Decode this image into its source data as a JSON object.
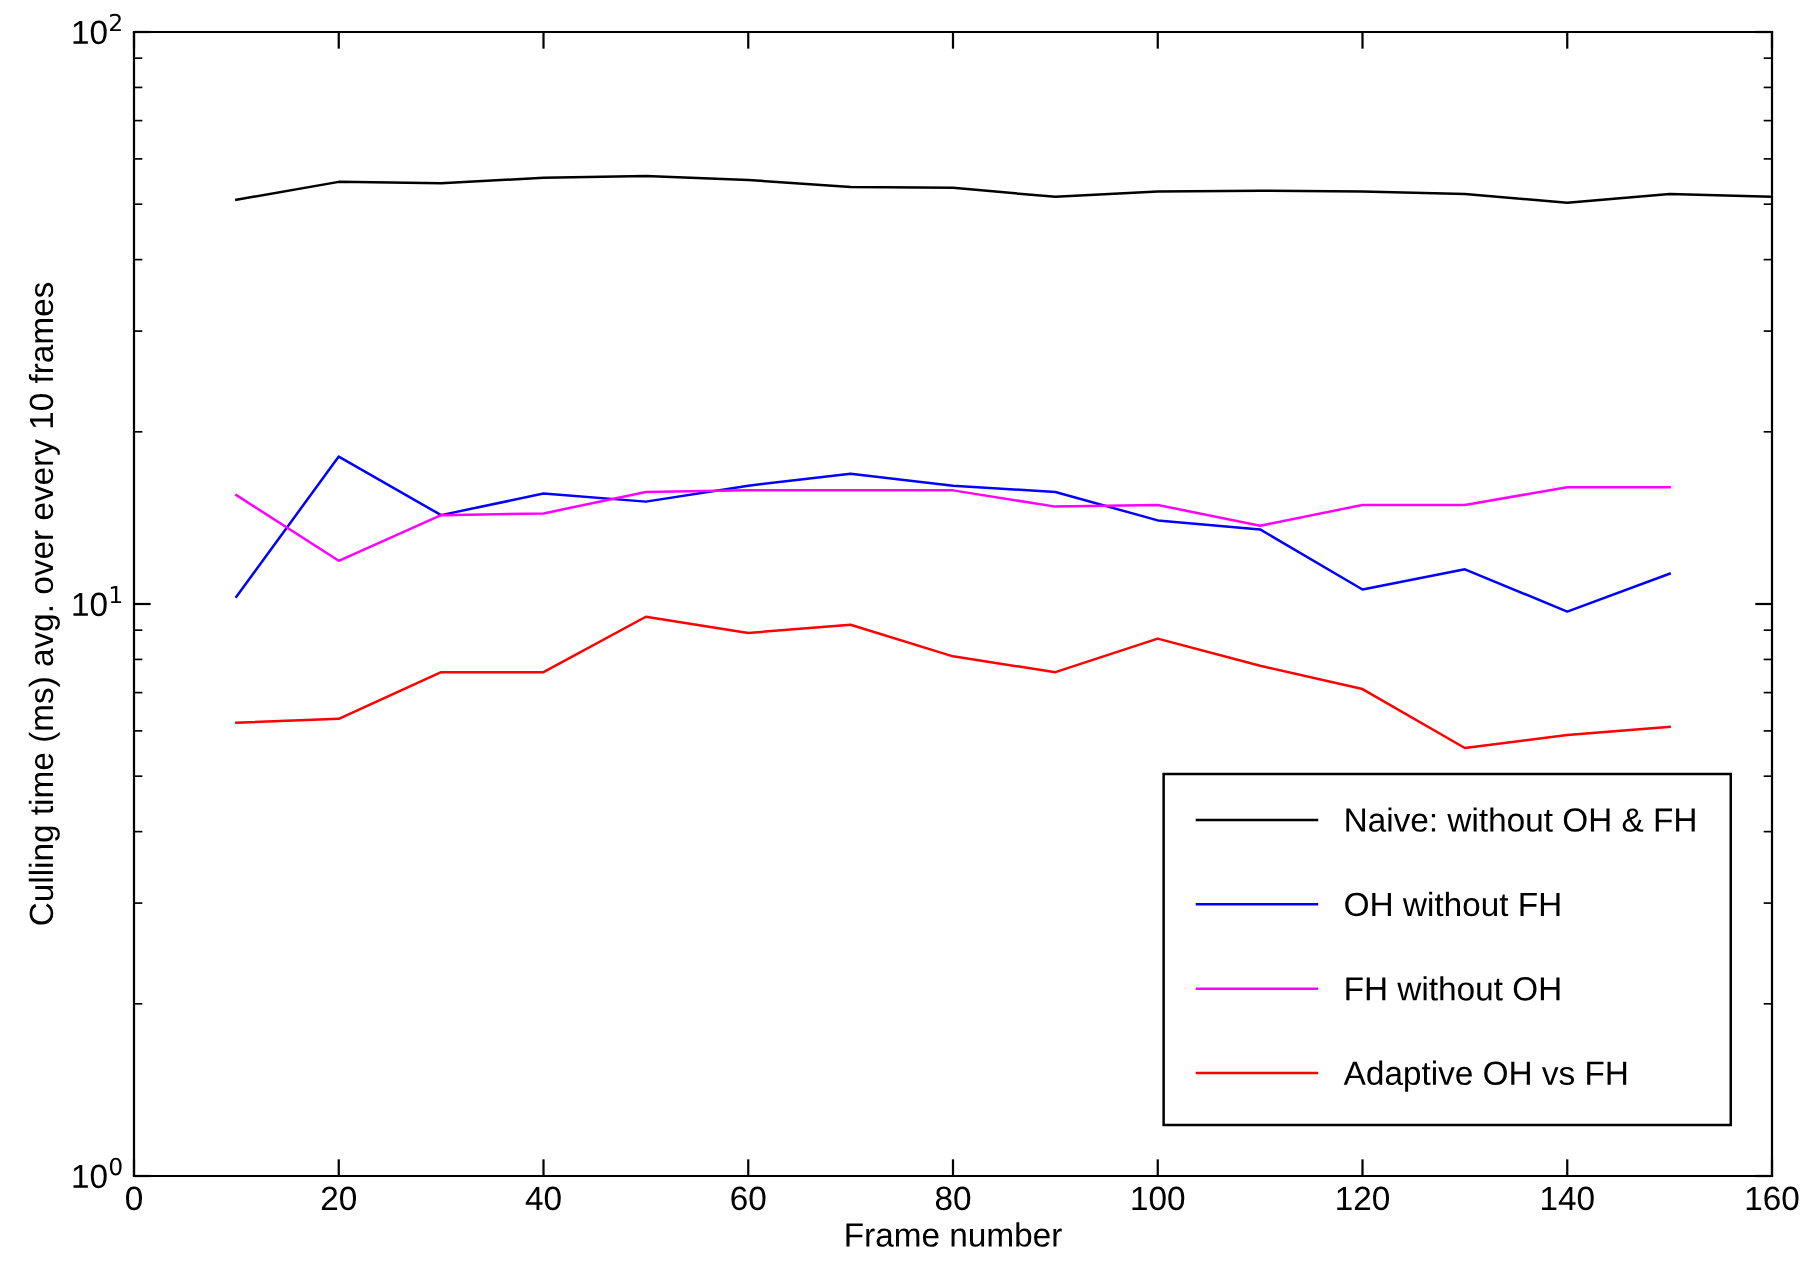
{
  "chart_data": {
    "type": "line",
    "xlabel": "Frame number",
    "ylabel": "Culling time (ms) avg. over every 10 frames",
    "x": [
      10,
      20,
      30,
      40,
      50,
      60,
      70,
      80,
      90,
      100,
      110,
      120,
      130,
      140,
      150
    ],
    "series": [
      {
        "name": "Naive: without OH & FH",
        "color": "#000000",
        "x": [
          10,
          20,
          30,
          40,
          50,
          60,
          70,
          80,
          90,
          100,
          110,
          120,
          130,
          140,
          150,
          160
        ],
        "values": [
          50.9,
          54.7,
          54.4,
          55.6,
          56.0,
          55.1,
          53.6,
          53.4,
          51.5,
          52.6,
          52.8,
          52.6,
          52.1,
          50.3,
          52.1,
          51.5
        ]
      },
      {
        "name": "OH without FH",
        "color": "#0000ff",
        "values": [
          10.3,
          18.1,
          14.3,
          15.6,
          15.1,
          16.1,
          16.9,
          16.1,
          15.7,
          14.0,
          13.5,
          10.6,
          11.5,
          9.7,
          11.3
        ]
      },
      {
        "name": "FH without OH",
        "color": "#ff00ff",
        "values": [
          15.5,
          11.9,
          14.3,
          14.4,
          15.7,
          15.8,
          15.8,
          15.8,
          14.8,
          14.9,
          13.7,
          14.9,
          14.9,
          16.0,
          16.0
        ]
      },
      {
        "name": "Adaptive OH vs FH",
        "color": "#ff0000",
        "values": [
          6.2,
          6.3,
          7.6,
          7.6,
          9.5,
          8.9,
          9.2,
          8.1,
          7.6,
          8.7,
          7.8,
          7.1,
          5.6,
          5.9,
          6.1
        ]
      }
    ],
    "log": "y",
    "xlim": [
      0,
      160
    ],
    "xticks": [
      0,
      20,
      40,
      60,
      80,
      100,
      120,
      140,
      160
    ],
    "ylim": [
      1,
      100
    ],
    "yticks": [
      {
        "value": 1,
        "label": "10$^{0}$"
      },
      {
        "value": 10,
        "label": "10$^{1}$"
      },
      {
        "value": 100,
        "label": "10$^{2}$"
      }
    ],
    "grid": false,
    "legend": "bottom right",
    "marker": "none",
    "line_style": "solid"
  }
}
